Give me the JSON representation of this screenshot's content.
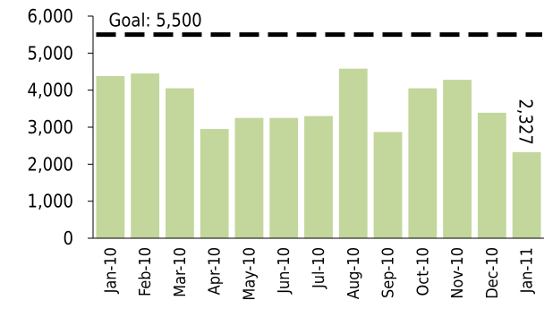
{
  "chart_data": {
    "type": "bar",
    "categories": [
      "Jan-10",
      "Feb-10",
      "Mar-10",
      "Apr-10",
      "May-10",
      "Jun-10",
      "Jul-10",
      "Aug-10",
      "Sep-10",
      "Oct-10",
      "Nov-10",
      "Dec-10",
      "Jan-11"
    ],
    "values": [
      4380,
      4450,
      4050,
      2950,
      3250,
      3250,
      3300,
      4580,
      2870,
      4050,
      4280,
      3390,
      2327
    ],
    "ylim": [
      0,
      6000
    ],
    "yticks": [
      "0",
      "1,000",
      "2,000",
      "3,000",
      "4,000",
      "5,000",
      "6,000"
    ],
    "bar_color": "#c3d69b",
    "goal": {
      "value": 5500,
      "label": "Goal: 5,500",
      "color": "#000000"
    },
    "data_label": {
      "index": 12,
      "text": "2,327"
    },
    "legend": "none",
    "grid": false
  }
}
